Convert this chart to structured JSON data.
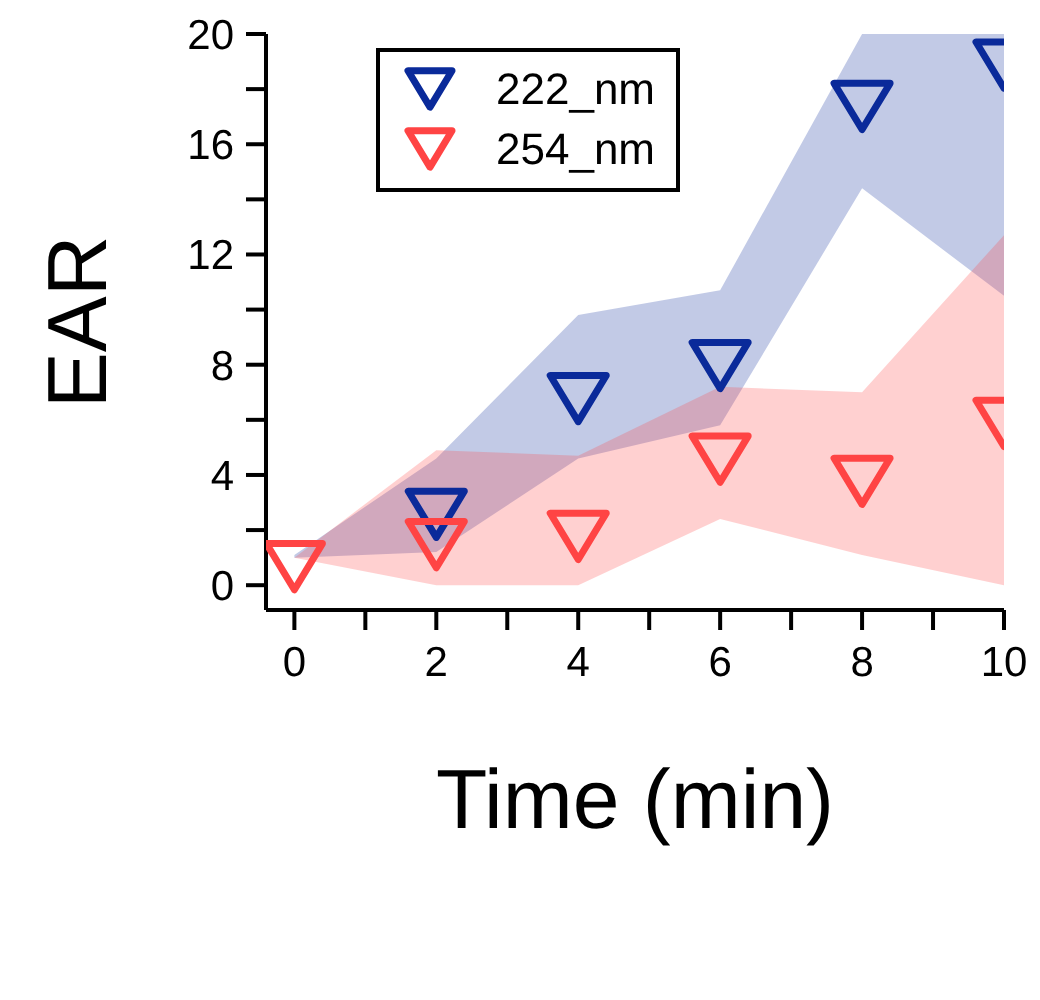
{
  "chart_data": {
    "type": "scatter",
    "xlabel": "Time (min)",
    "ylabel": "EAR",
    "x": [
      0,
      2,
      4,
      6,
      8,
      10
    ],
    "xlim": [
      -0.4,
      10
    ],
    "xticks": [
      0,
      {
        "value": 1,
        "label": null
      },
      2,
      {
        "value": 3,
        "label": null
      },
      4,
      {
        "value": 5,
        "label": null
      },
      6,
      {
        "value": 7,
        "label": null
      },
      8,
      {
        "value": 9,
        "label": null
      },
      10
    ],
    "ylim": [
      -0.9,
      20
    ],
    "yticks": [
      0,
      {
        "value": 2,
        "label": null
      },
      4,
      {
        "value": 6,
        "label": null
      },
      8,
      {
        "value": 10,
        "label": null
      },
      12,
      {
        "value": 14,
        "label": null
      },
      16,
      {
        "value": 18,
        "label": null
      },
      20
    ],
    "marker": "triangle",
    "legend": "top left",
    "grid": false,
    "series": [
      {
        "name": "222_nm",
        "color": "#0a2a9a",
        "values": [
          null,
          2.8,
          7.0,
          8.2,
          17.6,
          19.1
        ],
        "lower": [
          1.0,
          1.2,
          4.6,
          5.8,
          14.4,
          10.5
        ],
        "upper": [
          1.1,
          4.6,
          9.8,
          10.7,
          20,
          20
        ]
      },
      {
        "name": "254_nm",
        "color": "#ff4444",
        "values": [
          0.9,
          1.7,
          2.0,
          4.8,
          4.0,
          6.1
        ],
        "lower": [
          1.0,
          0,
          0,
          2.4,
          1.1,
          0
        ],
        "upper": [
          1.0,
          4.9,
          4.7,
          7.2,
          7.0,
          12.7
        ]
      }
    ]
  }
}
